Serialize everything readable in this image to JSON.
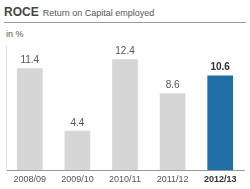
{
  "chart_data": {
    "type": "bar",
    "title": "ROCE",
    "subtitle": "Return on Capital employed",
    "ylabel": "in %",
    "categories": [
      "2008/09",
      "2009/10",
      "2010/11",
      "2011/12",
      "2012/13"
    ],
    "values": [
      11.4,
      4.4,
      12.4,
      8.6,
      10.6
    ],
    "colors": [
      "#d6d6d6",
      "#d6d6d6",
      "#d6d6d6",
      "#d6d6d6",
      "#1f6fa6"
    ],
    "ylim": [
      0,
      14
    ],
    "data_labels": true,
    "tick_labels": "x",
    "grid": false
  }
}
